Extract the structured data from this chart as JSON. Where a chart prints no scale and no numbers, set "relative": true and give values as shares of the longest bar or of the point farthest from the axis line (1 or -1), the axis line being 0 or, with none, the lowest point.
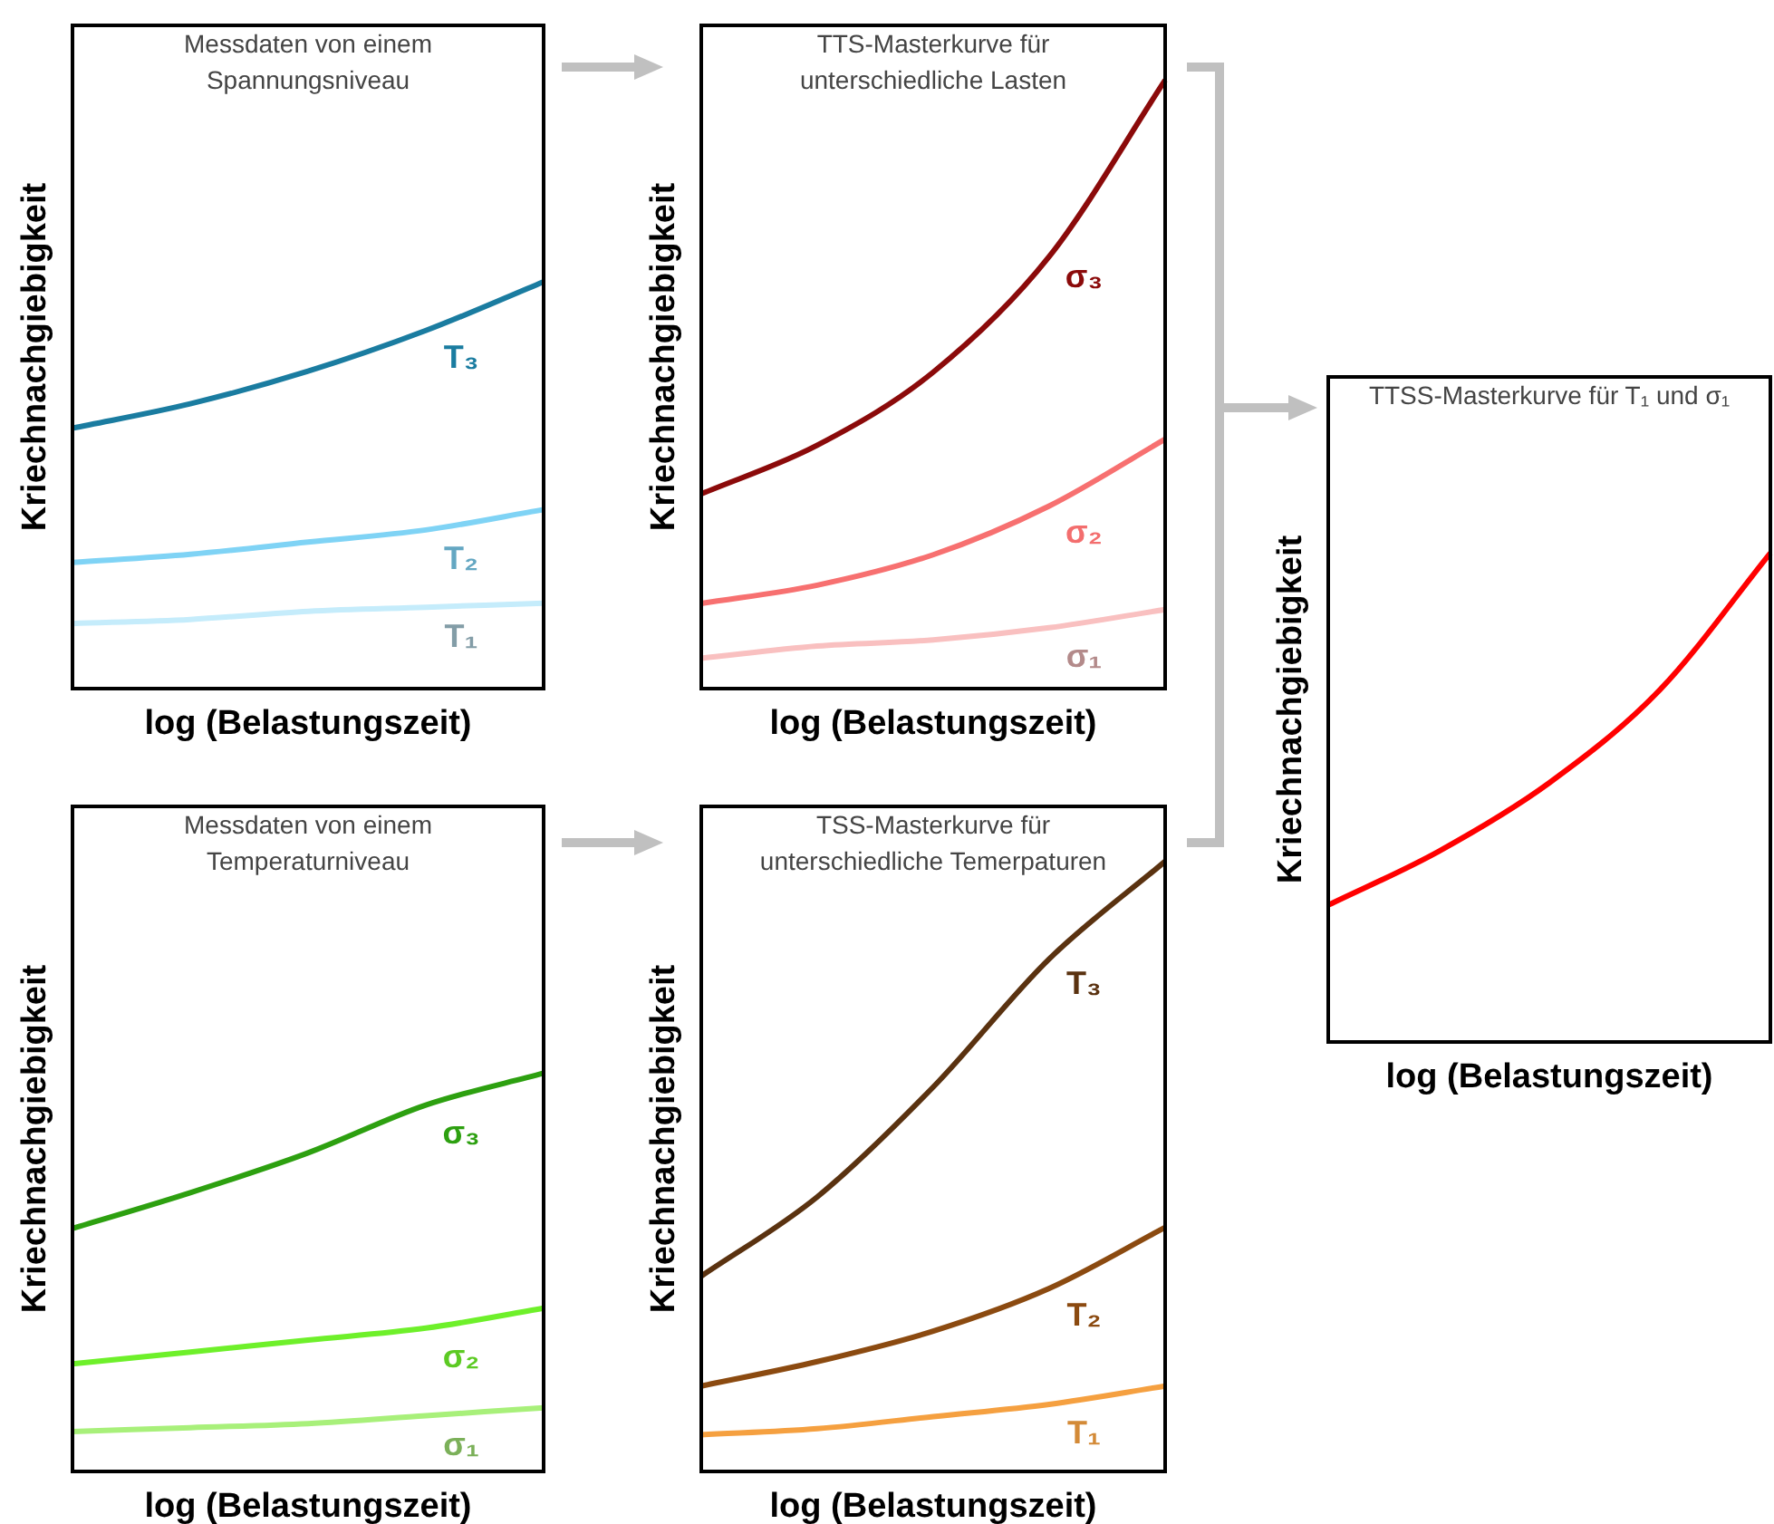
{
  "chart_data": [
    {
      "type": "line",
      "relative": true,
      "title": "Messdaten von einem Spannungsniveau",
      "xlabel": "log (Belastungszeit)",
      "ylabel": "Kriechnachgiebigkeit",
      "categories": [
        null,
        null,
        null,
        null,
        null
      ],
      "legend": false,
      "marker": "none",
      "series": [
        {
          "name": "T₃",
          "color": "#1a7ca0",
          "values": [
            0.64,
            0.7,
            0.78,
            0.88,
            1
          ]
        },
        {
          "name": "T₂",
          "color": "#7fd3f5",
          "values": [
            0.31,
            0.33,
            0.36,
            0.39,
            0.44
          ]
        },
        {
          "name": "T₁",
          "color": "#c5ecfb",
          "values": [
            0.16,
            0.17,
            0.19,
            0.2,
            0.21
          ]
        }
      ]
    },
    {
      "type": "line",
      "relative": true,
      "title": "TTS-Masterkurve für unterschiedliche Lasten",
      "xlabel": "log (Belastungszeit)",
      "ylabel": "Kriechnachgiebigkeit",
      "categories": [
        null,
        null,
        null,
        null,
        null
      ],
      "legend": false,
      "marker": "none",
      "series": [
        {
          "name": "σ₃",
          "color": "#8b0a0a",
          "values": [
            0.32,
            0.4,
            0.52,
            0.71,
            1
          ]
        },
        {
          "name": "σ₂",
          "color": "#f77070",
          "values": [
            0.14,
            0.17,
            0.22,
            0.3,
            0.41
          ]
        },
        {
          "name": "σ₁",
          "color": "#f9c0c0",
          "values": [
            0.05,
            0.07,
            0.08,
            0.1,
            0.13
          ]
        }
      ]
    },
    {
      "type": "line",
      "relative": true,
      "title": "Messdaten von einem Temperaturniveau",
      "xlabel": "log (Belastungszeit)",
      "ylabel": "Kriechnachgiebigkeit",
      "categories": [
        null,
        null,
        null,
        null,
        null
      ],
      "legend": false,
      "marker": "none",
      "series": [
        {
          "name": "σ₃",
          "color": "#2da010",
          "values": [
            0.61,
            0.7,
            0.8,
            0.92,
            1
          ]
        },
        {
          "name": "σ₂",
          "color": "#6ef02a",
          "values": [
            0.27,
            0.3,
            0.33,
            0.36,
            0.41
          ]
        },
        {
          "name": "σ₁",
          "color": "#a8f07a",
          "values": [
            0.1,
            0.11,
            0.12,
            0.14,
            0.16
          ]
        }
      ]
    },
    {
      "type": "line",
      "relative": true,
      "title": "TSS-Masterkurve für unterschiedliche Temerpaturen",
      "xlabel": "log (Belastungszeit)",
      "ylabel": "Kriechnachgiebigkeit",
      "categories": [
        null,
        null,
        null,
        null,
        null
      ],
      "legend": false,
      "marker": "none",
      "series": [
        {
          "name": "T₃",
          "color": "#5a3210",
          "values": [
            0.32,
            0.45,
            0.63,
            0.84,
            1
          ]
        },
        {
          "name": "T₂",
          "color": "#8b4a10",
          "values": [
            0.14,
            0.18,
            0.23,
            0.3,
            0.4
          ]
        },
        {
          "name": "T₁",
          "color": "#f5a040",
          "values": [
            0.06,
            0.07,
            0.09,
            0.11,
            0.14
          ]
        }
      ]
    },
    {
      "type": "line",
      "relative": true,
      "title": "TTSS-Masterkurve für T₁ und σ₁",
      "xlabel": "log (Belastungszeit)",
      "ylabel": "Kriechnachgiebigkeit",
      "categories": [
        null,
        null,
        null,
        null,
        null
      ],
      "legend": false,
      "marker": "none",
      "series": [
        {
          "color": "#ff0000",
          "values": [
            0.28,
            0.39,
            0.53,
            0.72,
            1
          ]
        }
      ]
    }
  ]
}
